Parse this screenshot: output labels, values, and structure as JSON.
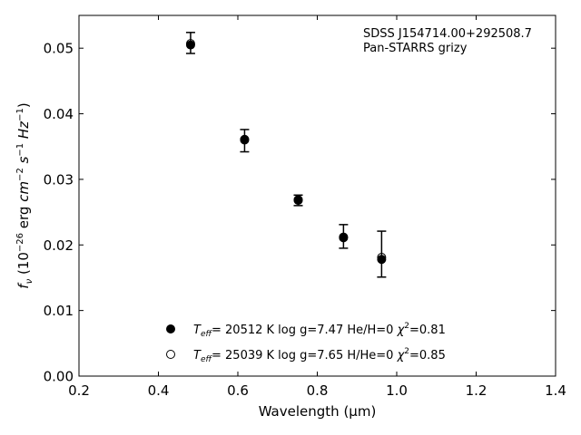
{
  "chart_data": {
    "type": "scatter",
    "xlabel": "Wavelength (μm)",
    "ylabel_parts": {
      "f": "f",
      "nu": "ν",
      "open": " (10",
      "exp1": "−26",
      "unit": " erg ",
      "cm": "cm",
      "exp2": "−2",
      "s": " s",
      "exp3": "−1",
      "hz": " Hz",
      "exp4": "−1",
      "close": ")"
    },
    "xlim": [
      0.2,
      1.4
    ],
    "ylim": [
      0.0,
      0.055
    ],
    "xticks": [
      "0.2",
      "0.4",
      "0.6",
      "0.8",
      "1.0",
      "1.2",
      "1.4"
    ],
    "yticks": [
      "0.00",
      "0.01",
      "0.02",
      "0.03",
      "0.04",
      "0.05"
    ],
    "annotation": {
      "object": "SDSS J154714.00+292508.7",
      "survey": "Pan-STARRS grizy"
    },
    "observed": {
      "x": [
        0.481,
        0.617,
        0.752,
        0.866,
        0.962
      ],
      "y": [
        0.0508,
        0.0359,
        0.0268,
        0.0213,
        0.0186
      ],
      "yerr": [
        0.0016,
        0.0017,
        0.0008,
        0.0018,
        0.0035
      ]
    },
    "series": [
      {
        "name_parts": {
          "teff": "T",
          "sub": "eff",
          "value": "= 20512 K  log g=7.47  He/H=0  ",
          "chi": "χ",
          "sup": "2",
          "fit": "=0.81"
        },
        "marker": "filled",
        "x": [
          0.481,
          0.617,
          0.752,
          0.866,
          0.962
        ],
        "y": [
          0.0505,
          0.0361,
          0.0268,
          0.0211,
          0.0178
        ]
      },
      {
        "name_parts": {
          "teff": "T",
          "sub": "eff",
          "value": "= 25039 K  log g=7.65  H/He=0  ",
          "chi": "χ",
          "sup": "2",
          "fit": "=0.85"
        },
        "marker": "open",
        "x": [
          0.481,
          0.617,
          0.752,
          0.866,
          0.962
        ],
        "y": [
          0.0507,
          0.036,
          0.0269,
          0.0212,
          0.0181
        ]
      }
    ],
    "grid": false,
    "legend_position": "lower-center"
  }
}
